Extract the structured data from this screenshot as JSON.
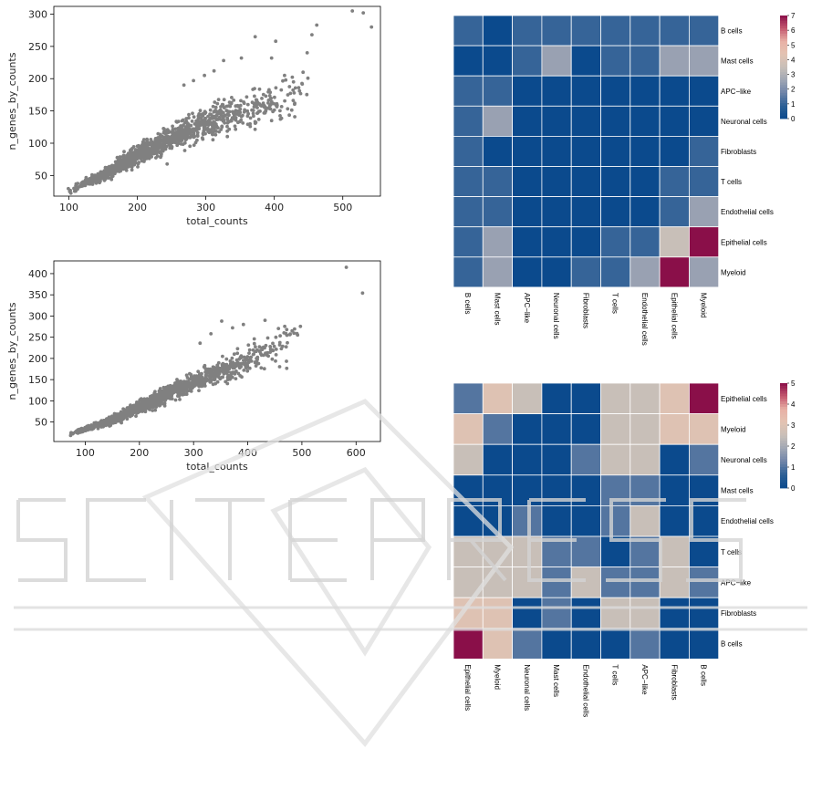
{
  "colors": {
    "scatter_point": "#808080",
    "axis": "#000000",
    "heatmap_grid": "#ffffff",
    "colormap": [
      "#0b4a8d",
      "#2c5f95",
      "#6f84a8",
      "#a0a6b4",
      "#c8bfb8",
      "#e3c3b2",
      "#e8b1a6",
      "#c4586f",
      "#8a0f49"
    ],
    "watermark": "#d9d9d9"
  },
  "chart_data": [
    {
      "type": "scatter",
      "id": "scatter-top",
      "xlabel": "total_counts",
      "ylabel": "n_genes_by_counts",
      "xlim": [
        78,
        555
      ],
      "ylim": [
        18,
        312
      ],
      "xticks": [
        100,
        200,
        300,
        400,
        500
      ],
      "yticks": [
        50,
        100,
        150,
        200,
        250,
        300
      ],
      "grid": false,
      "point_model": {
        "n": 1300,
        "x_min": 96,
        "x_mode": 200,
        "x_max": 470,
        "y_curve": [
          [
            95,
            25
          ],
          [
            150,
            50
          ],
          [
            200,
            82
          ],
          [
            250,
            108
          ],
          [
            300,
            132
          ],
          [
            350,
            150
          ],
          [
            400,
            165
          ],
          [
            450,
            185
          ],
          [
            470,
            195
          ]
        ],
        "y_spread": 0.14
      },
      "outliers": [
        [
          514,
          305
        ],
        [
          530,
          302
        ],
        [
          542,
          280
        ],
        [
          462,
          283
        ],
        [
          455,
          268
        ],
        [
          448,
          240
        ],
        [
          402,
          258
        ],
        [
          372,
          265
        ],
        [
          352,
          232
        ],
        [
          326,
          228
        ],
        [
          312,
          212
        ],
        [
          298,
          205
        ],
        [
          282,
          197
        ],
        [
          268,
          190
        ],
        [
          428,
          195
        ],
        [
          442,
          210
        ],
        [
          396,
          232
        ],
        [
          415,
          205
        ]
      ]
    },
    {
      "type": "scatter",
      "id": "scatter-bottom",
      "xlabel": "total_counts",
      "ylabel": "n_genes_by_counts",
      "xlim": [
        42,
        645
      ],
      "ylim": [
        4,
        430
      ],
      "xticks": [
        100,
        200,
        300,
        400,
        500,
        600
      ],
      "yticks": [
        50,
        100,
        150,
        200,
        250,
        300,
        350,
        400
      ],
      "grid": false,
      "point_model": {
        "n": 1500,
        "x_min": 68,
        "x_mode": 170,
        "x_max": 500,
        "y_curve": [
          [
            68,
            20
          ],
          [
            100,
            33
          ],
          [
            150,
            55
          ],
          [
            200,
            85
          ],
          [
            250,
            115
          ],
          [
            300,
            145
          ],
          [
            350,
            170
          ],
          [
            400,
            195
          ],
          [
            450,
            225
          ],
          [
            500,
            262
          ]
        ],
        "y_spread": 0.13
      },
      "outliers": [
        [
          582,
          415
        ],
        [
          612,
          354
        ],
        [
          432,
          290
        ],
        [
          352,
          288
        ],
        [
          392,
          280
        ],
        [
          372,
          272
        ],
        [
          332,
          258
        ],
        [
          312,
          236
        ],
        [
          472,
          268
        ],
        [
          482,
          265
        ],
        [
          452,
          250
        ],
        [
          412,
          246
        ]
      ]
    },
    {
      "type": "heatmap",
      "id": "heatmap-top",
      "rows": [
        "B cells",
        "Mast cells",
        "APC−like",
        "Neuronal cells",
        "Fibroblasts",
        "T cells",
        "Endothelial cells",
        "Epithelial cells",
        "Myeloid"
      ],
      "cols": [
        "B cells",
        "Mast cells",
        "APC−like",
        "Neuronal cells",
        "Fibroblasts",
        "T cells",
        "Endothelial cells",
        "Epithelial cells",
        "Myeloid"
      ],
      "values": [
        [
          1,
          0,
          1,
          1,
          1,
          1,
          1,
          1,
          1
        ],
        [
          0,
          0,
          1,
          2.5,
          0,
          1,
          1,
          2.5,
          2.5
        ],
        [
          1,
          1,
          0,
          0,
          0,
          0,
          0,
          0,
          0
        ],
        [
          1,
          2.5,
          0,
          0,
          0,
          0,
          0,
          0,
          0
        ],
        [
          1,
          0,
          0,
          0,
          0,
          0,
          0,
          0,
          1
        ],
        [
          1,
          1,
          0,
          0,
          0,
          0,
          0,
          1,
          1
        ],
        [
          1,
          1,
          0,
          0,
          0,
          0,
          0,
          1,
          2.5
        ],
        [
          1,
          2.5,
          0,
          0,
          0,
          1,
          1,
          3.5,
          7
        ],
        [
          1,
          2.5,
          0,
          0,
          1,
          1,
          2.5,
          7,
          2.5
        ]
      ],
      "vmin": 0,
      "vmax": 7,
      "colorbar_ticks": [
        0,
        1,
        2,
        3,
        4,
        5,
        6,
        7
      ]
    },
    {
      "type": "heatmap",
      "id": "heatmap-bottom",
      "rows": [
        "Epithelial cells",
        "Myeloid",
        "Neuronal cells",
        "Mast cells",
        "Endothelial cells",
        "T cells",
        "APC−like",
        "Fibroblasts",
        "B cells"
      ],
      "cols": [
        "Epithelial cells",
        "Myeloid",
        "Neuronal cells",
        "Mast cells",
        "Endothelial cells",
        "T cells",
        "APC−like",
        "Fibroblasts",
        "B cells"
      ],
      "values": [
        [
          1,
          3,
          2.5,
          0,
          0,
          2.5,
          2.5,
          3,
          5
        ],
        [
          3,
          1,
          0,
          0,
          0,
          2.5,
          2.5,
          3,
          3
        ],
        [
          2.5,
          0,
          0,
          0,
          1,
          2.5,
          2.5,
          0,
          1
        ],
        [
          0,
          0,
          0,
          0,
          0,
          1,
          1,
          0,
          0
        ],
        [
          0,
          0,
          1,
          0,
          0,
          1,
          2.5,
          0,
          0
        ],
        [
          2.5,
          2.5,
          2.5,
          1,
          1,
          0,
          1,
          2.5,
          0
        ],
        [
          2.5,
          2.5,
          2.5,
          1,
          2.5,
          1,
          1,
          2.5,
          1
        ],
        [
          3,
          3,
          0,
          1,
          0,
          2.5,
          2.5,
          0,
          0
        ],
        [
          5,
          3,
          1,
          0,
          0,
          0,
          1,
          0,
          0
        ]
      ],
      "vmin": 0,
      "vmax": 5,
      "colorbar_ticks": [
        0,
        1,
        2,
        3,
        4,
        5
      ]
    }
  ]
}
